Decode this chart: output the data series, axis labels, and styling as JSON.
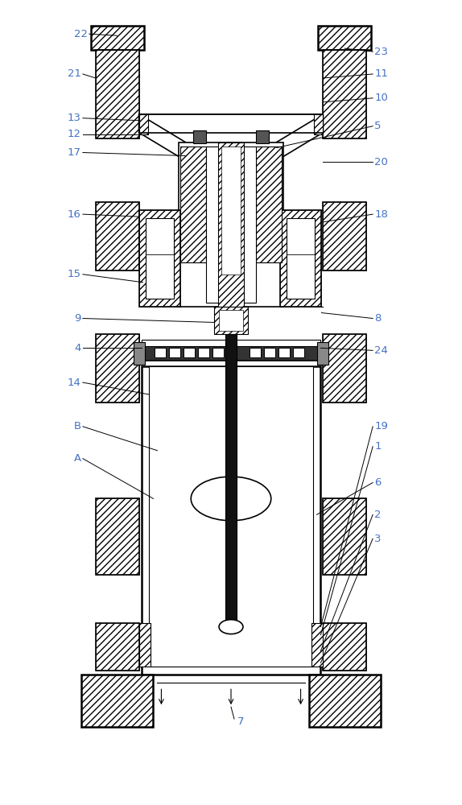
{
  "bg_color": "#ffffff",
  "line_color": "#000000",
  "label_color": "#4472c4",
  "fig_width": 5.74,
  "fig_height": 10.0
}
